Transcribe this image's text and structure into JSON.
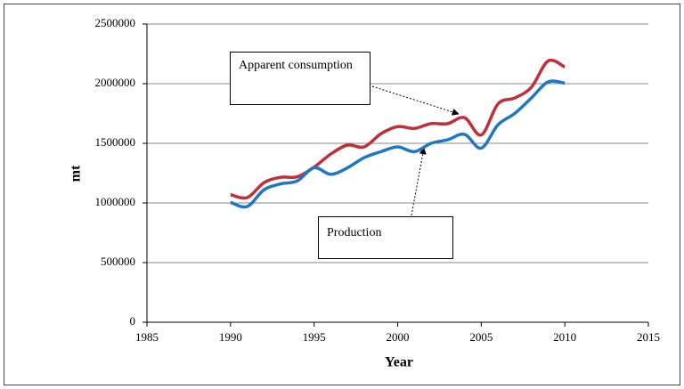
{
  "chart_data": {
    "type": "line",
    "x": [
      1990,
      1991,
      1992,
      1993,
      1994,
      1995,
      1996,
      1997,
      1998,
      1999,
      2000,
      2001,
      2002,
      2003,
      2004,
      2005,
      2006,
      2007,
      2008,
      2009,
      2010
    ],
    "series": [
      {
        "name": "Apparent consumption",
        "color": "#c0303a",
        "values": [
          1070000,
          1045000,
          1170000,
          1215000,
          1220000,
          1300000,
          1410000,
          1485000,
          1470000,
          1580000,
          1640000,
          1625000,
          1665000,
          1665000,
          1715000,
          1570000,
          1830000,
          1880000,
          1970000,
          2190000,
          2140000
        ]
      },
      {
        "name": "Production",
        "color": "#1f78c1",
        "values": [
          1005000,
          970000,
          1110000,
          1160000,
          1185000,
          1295000,
          1240000,
          1295000,
          1380000,
          1430000,
          1470000,
          1430000,
          1500000,
          1530000,
          1575000,
          1460000,
          1655000,
          1750000,
          1880000,
          2015000,
          2005000
        ]
      }
    ],
    "xlabel": "Year",
    "ylabel": "mt",
    "xlim": [
      1985,
      2015
    ],
    "xticks": [
      1985,
      1990,
      1995,
      2000,
      2005,
      2010,
      2015
    ],
    "ylim": [
      0,
      2500000
    ],
    "yticks": [
      0,
      500000,
      1000000,
      1500000,
      2000000,
      2500000
    ],
    "grid": true
  }
}
